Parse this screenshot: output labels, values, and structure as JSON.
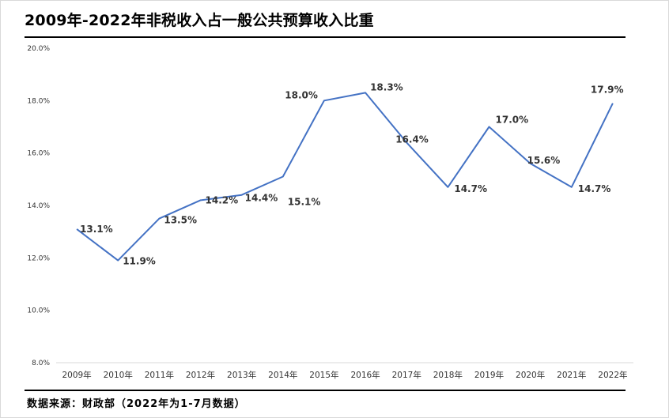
{
  "header": {
    "title": "2009年-2022年非税收入占一般公共预算收入比重"
  },
  "footer": {
    "source": "数据来源：财政部（2022年为1-7月数据）"
  },
  "chart_data": {
    "type": "line",
    "title": "2009年-2022年非税收入占一般公共预算收入比重",
    "categories": [
      "2009年",
      "2010年",
      "2011年",
      "2012年",
      "2013年",
      "2014年",
      "2015年",
      "2016年",
      "2017年",
      "2018年",
      "2019年",
      "2020年",
      "2021年",
      "2022年"
    ],
    "values": [
      13.1,
      11.9,
      13.5,
      14.2,
      14.4,
      15.1,
      18.0,
      18.3,
      16.4,
      14.7,
      17.0,
      15.6,
      14.7,
      17.9
    ],
    "data_labels": [
      "13.1%",
      "11.9%",
      "13.5%",
      "14.2%",
      "14.4%",
      "15.1%",
      "18.0%",
      "18.3%",
      "16.4%",
      "14.7%",
      "17.0%",
      "15.6%",
      "14.7%",
      "17.9%"
    ],
    "yticks": [
      "8.0%",
      "10.0%",
      "12.0%",
      "14.0%",
      "16.0%",
      "18.0%",
      "20.0%"
    ],
    "ylim": [
      8,
      20
    ],
    "ystep": 2,
    "grid": false,
    "legend": "none",
    "line_color": "#4472C4"
  }
}
